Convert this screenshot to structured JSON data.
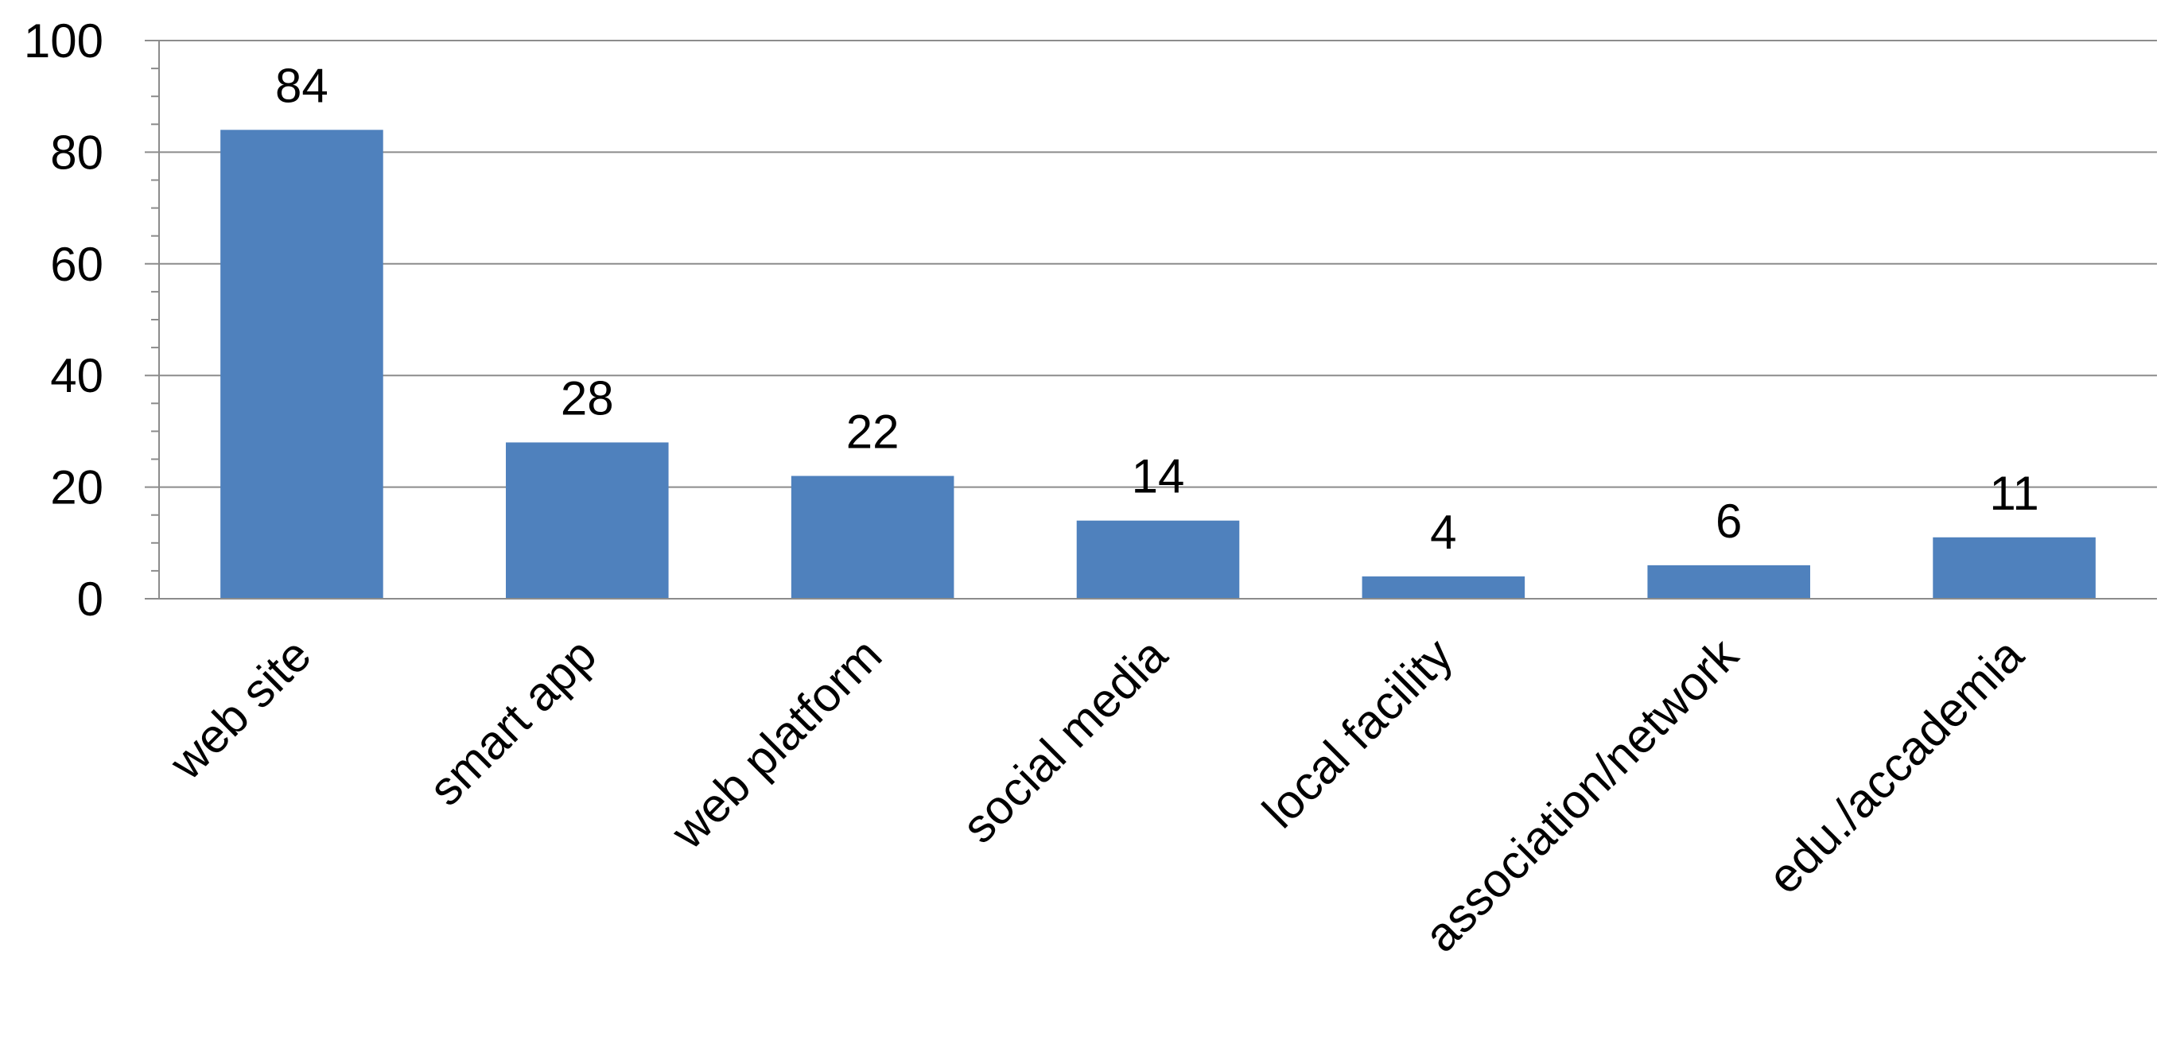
{
  "chart_data": {
    "type": "bar",
    "title": "",
    "xlabel": "",
    "ylabel": "",
    "categories": [
      "web site",
      "smart app",
      "web platform",
      "social media",
      "local facility",
      "association/network",
      "edu./accademia"
    ],
    "values": [
      84,
      28,
      22,
      14,
      4,
      6,
      11
    ],
    "ylim": [
      0,
      100
    ],
    "yticks": [
      0,
      20,
      40,
      60,
      80,
      100
    ],
    "ytick_labels": [
      "0",
      "20",
      "40",
      "60",
      "80",
      "100"
    ],
    "minor_tick_step": 5,
    "grid": true,
    "legend": "none",
    "data_labels": true,
    "bar_color": "#4f81bd",
    "grid_color": "#8c8c8c",
    "axis_color": "#8c8c8c",
    "text_color": "#000000",
    "category_label_rotation_deg": -45
  }
}
